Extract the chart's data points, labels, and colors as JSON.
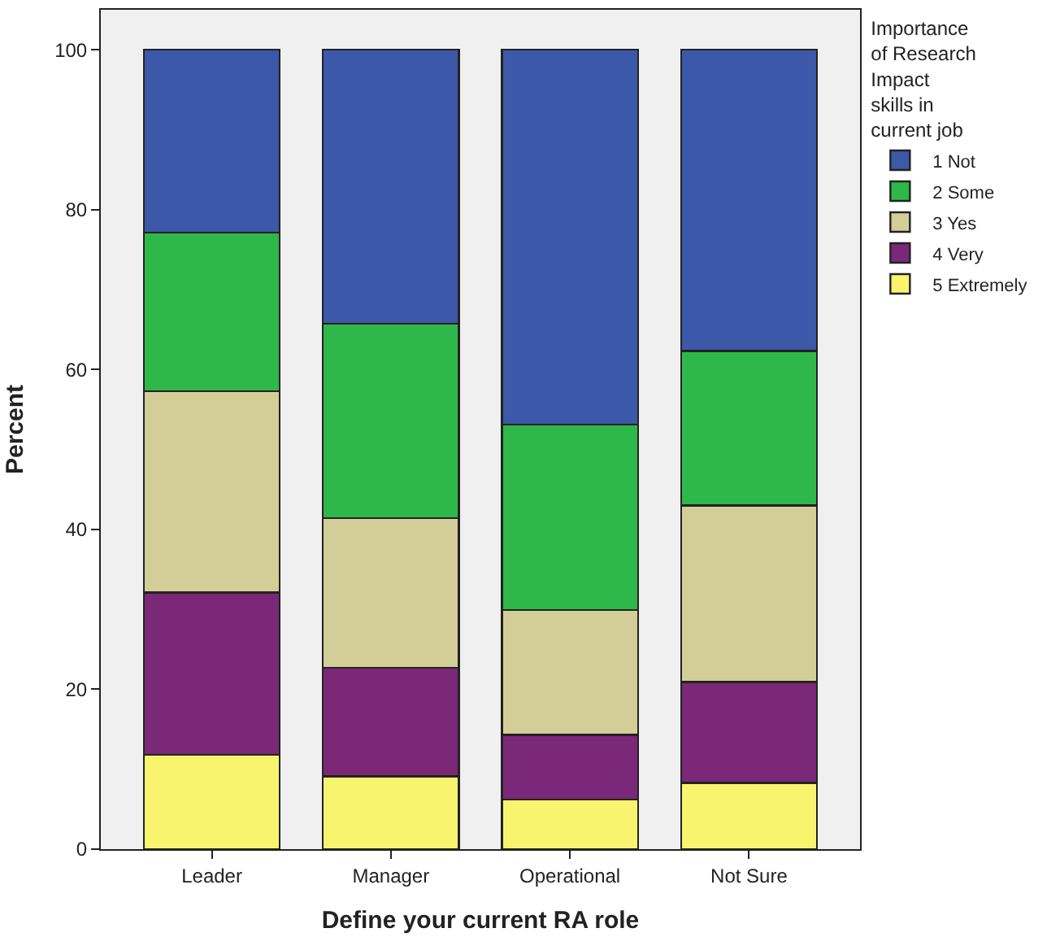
{
  "chart_data": {
    "type": "bar",
    "stacked": true,
    "xlabel": "Define your current RA role",
    "ylabel": "Percent",
    "legend_title": "Importance of Research Impact skills in current job",
    "legend": "top right",
    "grid": false,
    "categories": [
      "Leader",
      "Manager",
      "Operational",
      "Not Sure"
    ],
    "ylim": [
      0,
      105
    ],
    "yticks": [
      0,
      20,
      40,
      60,
      80,
      100
    ],
    "series": [
      {
        "name": "5 Extremely",
        "color": "#f8f46e",
        "values": [
          11.8,
          9.1,
          6.2,
          8.3
        ]
      },
      {
        "name": "4 Very",
        "color": "#7b2878",
        "values": [
          20.3,
          13.6,
          8.1,
          12.6
        ]
      },
      {
        "name": "3 Yes",
        "color": "#d3ce98",
        "values": [
          25.2,
          18.7,
          15.6,
          22.1
        ]
      },
      {
        "name": "2 Some",
        "color": "#2eb84a",
        "values": [
          19.8,
          24.3,
          23.2,
          19.3
        ]
      },
      {
        "name": "1 Not",
        "color": "#3c58a9",
        "values": [
          22.9,
          34.3,
          46.9,
          37.7
        ]
      }
    ]
  }
}
